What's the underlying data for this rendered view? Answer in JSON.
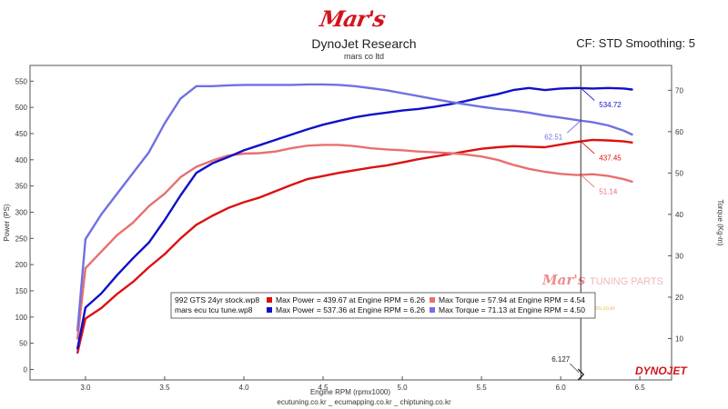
{
  "header": {
    "logo": "Mar's",
    "title": "DynoJet Research",
    "subtitle": "mars co ltd",
    "cf_label": "CF: STD Smoothing: 5"
  },
  "footer": {
    "text": "ecutuning.co.kr _ ecumapping.co.kr _ chiptuning.co.kr"
  },
  "watermark": {
    "brand": "Mar's",
    "text": "TUNING PARTS",
    "url": "www.marsparts.co.kr",
    "corner_logo": "DYNOJET"
  },
  "colors": {
    "stock_power": "#dc1010",
    "stock_torque": "#e87070",
    "tune_power": "#1010c8",
    "tune_torque": "#7070e0",
    "cursor": "#333333"
  },
  "chart_data": {
    "type": "line",
    "title": "DynoJet Research",
    "subtitle": "mars co ltd",
    "xlabel": "Engine RPM (rpmx1000)",
    "ylabel_left": "Power (PS)",
    "ylabel_right": "Torque (Kg-m)",
    "xlim": [
      2.65,
      6.7
    ],
    "ylim_left": [
      -20,
      580
    ],
    "ylim_right": [
      0,
      76
    ],
    "xticks": [
      "3.0",
      "3.5",
      "4.0",
      "4.5",
      "5.0",
      "5.5",
      "6.0",
      "6.5"
    ],
    "yticks_left": [
      "0",
      "50",
      "100",
      "150",
      "200",
      "250",
      "300",
      "350",
      "400",
      "450",
      "500",
      "550"
    ],
    "yticks_right": [
      "10",
      "20",
      "30",
      "40",
      "50",
      "60",
      "70"
    ],
    "grid": false,
    "cursor_rpm": "6.127",
    "series": [
      {
        "name": "992 GTS 24yr stock.wp8 Power",
        "axis": "left",
        "color": "#dc1010",
        "x": [
          2.95,
          3.0,
          3.1,
          3.2,
          3.3,
          3.4,
          3.5,
          3.6,
          3.7,
          3.8,
          3.9,
          4.0,
          4.1,
          4.2,
          4.3,
          4.4,
          4.5,
          4.6,
          4.7,
          4.8,
          4.9,
          5.0,
          5.1,
          5.2,
          5.3,
          5.4,
          5.5,
          5.6,
          5.7,
          5.8,
          5.9,
          6.0,
          6.1,
          6.2,
          6.3,
          6.4,
          6.45
        ],
        "y": [
          32,
          97,
          117,
          144,
          167,
          195,
          220,
          250,
          276,
          293,
          308,
          319,
          328,
          340,
          352,
          363,
          369,
          375,
          380,
          385,
          389,
          395,
          401,
          406,
          411,
          416,
          421,
          424,
          426,
          425,
          424,
          429,
          434,
          438,
          437,
          435,
          433
        ]
      },
      {
        "name": "992 GTS 24yr stock.wp8 Torque",
        "axis": "right",
        "color": "#e87070",
        "x": [
          2.95,
          3.0,
          3.1,
          3.2,
          3.3,
          3.4,
          3.5,
          3.6,
          3.7,
          3.8,
          3.9,
          4.0,
          4.1,
          4.2,
          4.3,
          4.4,
          4.5,
          4.6,
          4.7,
          4.8,
          4.9,
          5.0,
          5.1,
          5.2,
          5.3,
          5.4,
          5.5,
          5.6,
          5.7,
          5.8,
          5.9,
          6.0,
          6.1,
          6.2,
          6.3,
          6.4,
          6.45
        ],
        "y": [
          10,
          27,
          31,
          35,
          38,
          42,
          45,
          49,
          51.5,
          53,
          54.2,
          54.7,
          54.8,
          55.2,
          56,
          56.6,
          56.8,
          56.8,
          56.5,
          56,
          55.7,
          55.5,
          55.2,
          55,
          54.8,
          54.5,
          54,
          53.2,
          52,
          51,
          50.3,
          49.8,
          49.5,
          49.7,
          49.3,
          48.5,
          47.9
        ]
      },
      {
        "name": "mars ecu tcu tune.wp8 Power",
        "axis": "left",
        "color": "#1010c8",
        "x": [
          2.95,
          3.0,
          3.1,
          3.2,
          3.3,
          3.4,
          3.5,
          3.6,
          3.7,
          3.8,
          3.9,
          4.0,
          4.1,
          4.2,
          4.3,
          4.4,
          4.5,
          4.6,
          4.7,
          4.8,
          4.9,
          5.0,
          5.1,
          5.2,
          5.3,
          5.4,
          5.5,
          5.6,
          5.7,
          5.8,
          5.9,
          6.0,
          6.1,
          6.2,
          6.3,
          6.4,
          6.45
        ],
        "y": [
          40,
          118,
          145,
          180,
          212,
          242,
          285,
          332,
          375,
          393,
          405,
          418,
          428,
          438,
          448,
          458,
          467,
          474,
          481,
          486,
          490,
          494,
          497,
          501,
          506,
          512,
          519,
          525,
          533,
          537,
          533,
          536,
          537,
          536,
          537,
          536,
          534
        ]
      },
      {
        "name": "mars ecu tcu tune.wp8 Torque",
        "axis": "right",
        "color": "#7070e0",
        "x": [
          2.95,
          3.0,
          3.1,
          3.2,
          3.3,
          3.4,
          3.5,
          3.6,
          3.7,
          3.8,
          3.9,
          4.0,
          4.1,
          4.2,
          4.3,
          4.4,
          4.5,
          4.6,
          4.7,
          4.8,
          4.9,
          5.0,
          5.1,
          5.2,
          5.3,
          5.4,
          5.5,
          5.6,
          5.7,
          5.8,
          5.9,
          6.0,
          6.1,
          6.2,
          6.3,
          6.4,
          6.45
        ],
        "y": [
          12,
          34,
          40,
          45,
          50,
          55,
          62,
          68,
          71,
          71,
          71.2,
          71.3,
          71.3,
          71.3,
          71.3,
          71.4,
          71.4,
          71.3,
          71,
          70.5,
          70,
          69.3,
          68.6,
          67.9,
          67.2,
          66.6,
          66,
          65.5,
          65.1,
          64.6,
          63.9,
          63.4,
          62.8,
          62.3,
          61.5,
          60.2,
          59.3
        ]
      }
    ],
    "annotations": [
      {
        "text": "534.72",
        "x": 6.127,
        "series": 2,
        "color": "#1010c8"
      },
      {
        "text": "62.51",
        "x": 6.127,
        "series": 3,
        "color": "#7070e0"
      },
      {
        "text": "437.45",
        "x": 6.127,
        "series": 0,
        "color": "#dc1010"
      },
      {
        "text": "51.14",
        "x": 6.127,
        "series": 1,
        "color": "#e87070"
      }
    ],
    "legend": {
      "position": "lower-left",
      "rows": [
        {
          "file": "992 GTS 24yr stock.wp8",
          "power": "Max Power = 439.67 at Engine RPM = 6.26",
          "torque": "Max Torque = 57.94 at Engine RPM = 4.54",
          "power_color": "#dc1010",
          "torque_color": "#e87070"
        },
        {
          "file": "mars ecu tcu tune.wp8",
          "power": "Max Power = 537.36 at Engine RPM = 6.26",
          "torque": "Max Torque = 71.13 at Engine RPM = 4.50",
          "power_color": "#1010c8",
          "torque_color": "#7070e0"
        }
      ]
    }
  }
}
